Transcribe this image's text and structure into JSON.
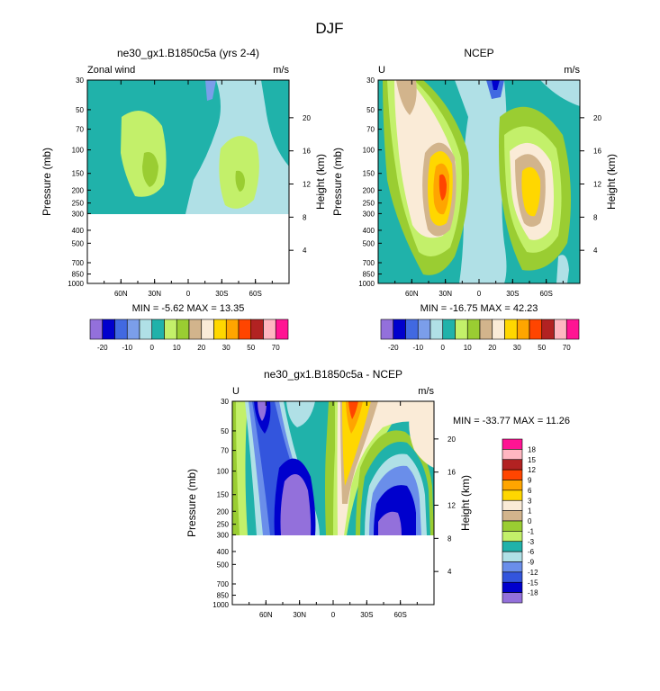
{
  "figure": {
    "title": "DJF"
  },
  "colors": {
    "scale_top": [
      "#9370DB",
      "#0000CD",
      "#4169E1",
      "#7B9EEA",
      "#B0E0E6",
      "#20B2AA",
      "#C3F06A",
      "#9ACD32",
      "#D2B48C",
      "#FAEBD7",
      "#FFD700",
      "#FFA500",
      "#FF4500",
      "#B22222",
      "#FFB6C1",
      "#FF1493"
    ],
    "scale_diff": [
      "#9370DB",
      "#0000CD",
      "#3355DD",
      "#6A8EEA",
      "#B0E0E6",
      "#20B2AA",
      "#C3F06A",
      "#9ACD32",
      "#D2B48C",
      "#FAEBD7",
      "#FFD700",
      "#FFA500",
      "#FF4500",
      "#B22222",
      "#FFB6C1",
      "#FF1493"
    ]
  },
  "chart_data": [
    {
      "type": "heatmap",
      "panel": "model",
      "title": "ne30_gx1.B1850c5a (yrs 2-4)",
      "left_label": "Zonal wind",
      "right_label": "m/s",
      "xlabel": "",
      "ylabel": "Pressure (mb)",
      "y2label": "Height (km)",
      "x_ticks": [
        "60N",
        "30N",
        "0",
        "30S",
        "60S"
      ],
      "y_ticks": [
        "30",
        "50",
        "70",
        "100",
        "150",
        "200",
        "250",
        "300",
        "400",
        "500",
        "700",
        "850",
        "1000"
      ],
      "y2_ticks": [
        "20",
        "16",
        "12",
        "8",
        "4"
      ],
      "data_top_mb": 300,
      "min_max_text": "MIN = -5.62  MAX = 13.35",
      "colorbar_labels": [
        "-20",
        "-10",
        "0",
        "10",
        "20",
        "30",
        "50",
        "70"
      ],
      "stats": {
        "min": -5.62,
        "max": 13.35
      }
    },
    {
      "type": "heatmap",
      "panel": "obs",
      "title": "NCEP",
      "left_label": "U",
      "right_label": "m/s",
      "ylabel": "Pressure (mb)",
      "y2label": "Height (km)",
      "x_ticks": [
        "60N",
        "30N",
        "0",
        "30S",
        "60S"
      ],
      "y_ticks": [
        "30",
        "50",
        "70",
        "100",
        "150",
        "200",
        "250",
        "300",
        "400",
        "500",
        "700",
        "850",
        "1000"
      ],
      "y2_ticks": [
        "20",
        "16",
        "12",
        "8",
        "4"
      ],
      "min_max_text": "MIN = -16.75  MAX = 42.23",
      "colorbar_labels": [
        "-20",
        "-10",
        "0",
        "10",
        "20",
        "30",
        "50",
        "70"
      ],
      "stats": {
        "min": -16.75,
        "max": 42.23
      }
    },
    {
      "type": "heatmap",
      "panel": "difference",
      "title": "ne30_gx1.B1850c5a - NCEP",
      "left_label": "U",
      "right_label": "m/s",
      "ylabel": "Pressure (mb)",
      "y2label": "Height (km)",
      "x_ticks": [
        "60N",
        "30N",
        "0",
        "30S",
        "60S"
      ],
      "y_ticks": [
        "30",
        "50",
        "70",
        "100",
        "150",
        "200",
        "250",
        "300",
        "400",
        "500",
        "700",
        "850",
        "1000"
      ],
      "y2_ticks": [
        "20",
        "16",
        "12",
        "8",
        "4"
      ],
      "data_top_mb": 300,
      "min_max_text": "MIN = -33.77  MAX = 11.26",
      "colorbar_labels": [
        "18",
        "15",
        "12",
        "9",
        "6",
        "3",
        "1",
        "0",
        "-1",
        "-3",
        "-6",
        "-9",
        "-12",
        "-15",
        "-18"
      ],
      "stats": {
        "min": -33.77,
        "max": 11.26
      }
    }
  ]
}
